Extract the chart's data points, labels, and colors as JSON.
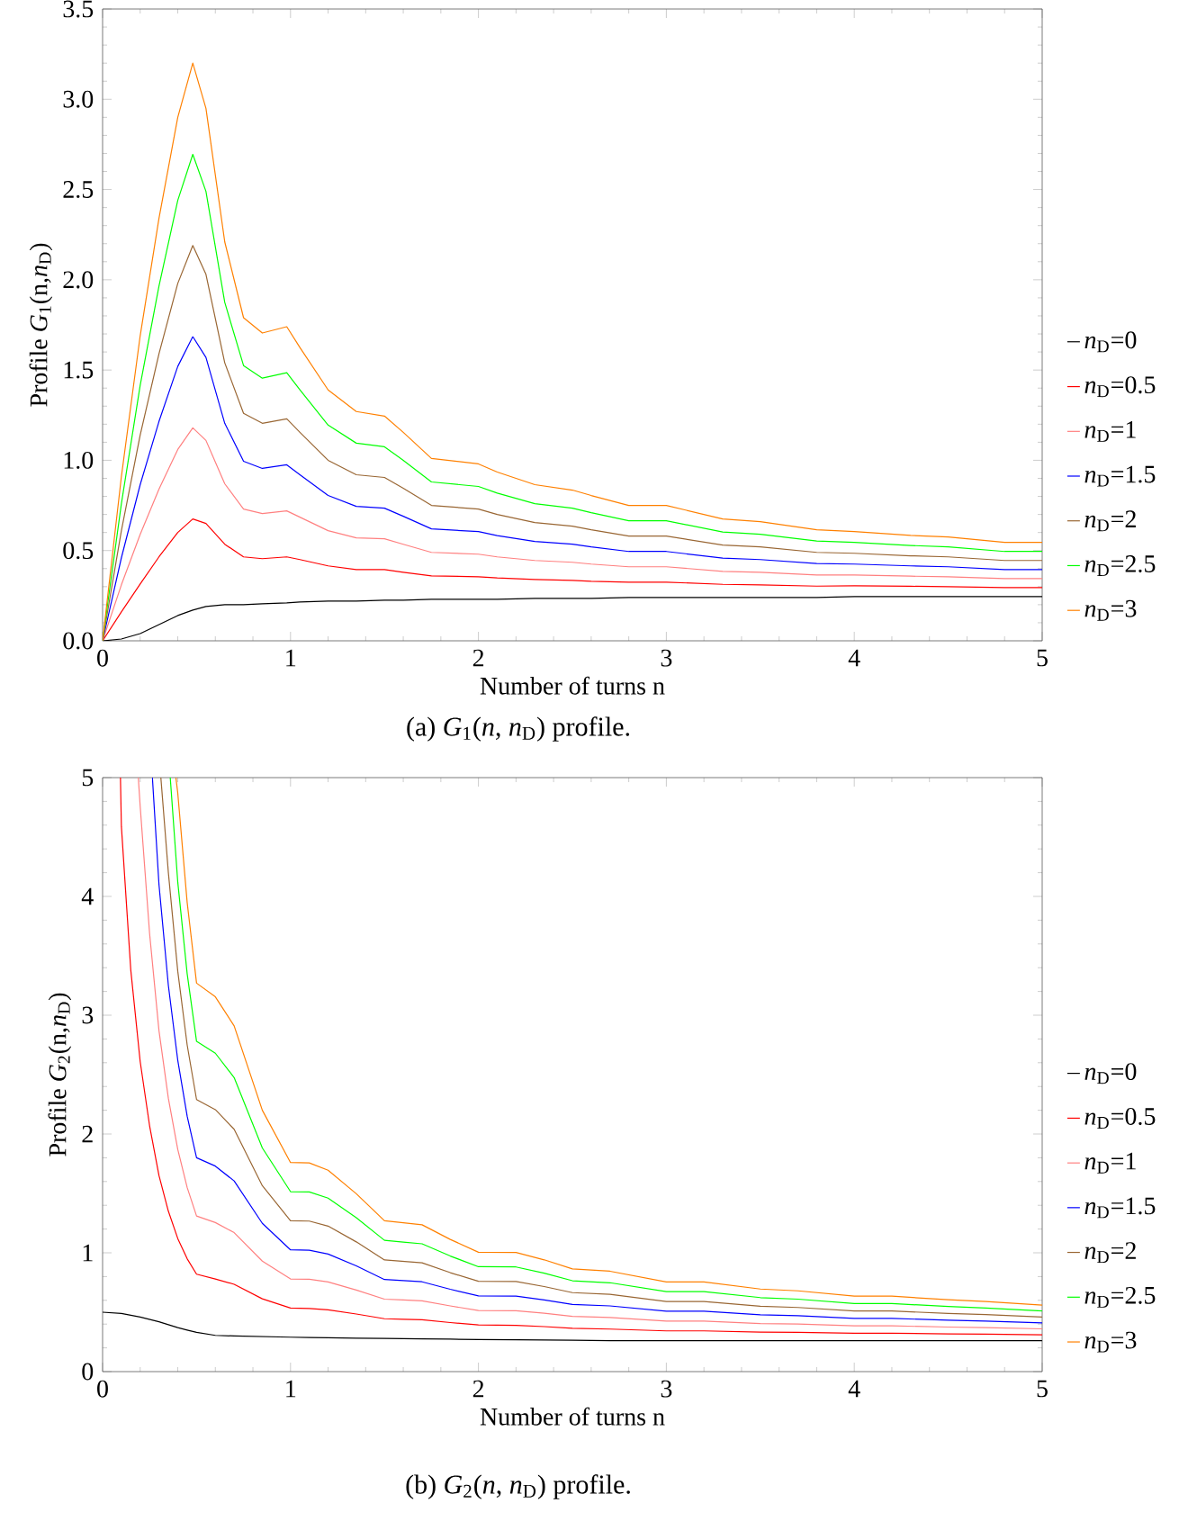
{
  "chart_data": [
    {
      "type": "line",
      "xlabel": "Number of turns n",
      "ylabel": "Profile *G*$_{1}$(n,*n*$_{D}$)",
      "annotations": [
        "(a) *G*$_{1}$(*n*, *n*$_{D}$) profile."
      ],
      "xlim": [
        0,
        5
      ],
      "ylim": [
        0,
        3.5
      ],
      "xticks": [
        0,
        1,
        2,
        3,
        4,
        5
      ],
      "yticks": [
        {
          "value": 0,
          "label": "0.0"
        },
        {
          "value": 0.5,
          "label": "0.5"
        },
        {
          "value": 1,
          "label": "1.0"
        },
        {
          "value": 1.5,
          "label": "1.5"
        },
        {
          "value": 2,
          "label": "2.0"
        },
        {
          "value": 2.5,
          "label": "2.5"
        },
        {
          "value": 3,
          "label": "3.0"
        },
        {
          "value": 3.5,
          "label": "3.5"
        }
      ],
      "legend": "right",
      "line_style": "solid",
      "x": [
        0,
        0.1,
        0.2,
        0.3,
        0.4,
        0.48,
        0.55,
        0.65,
        0.75,
        0.85,
        0.98,
        1.05,
        1.2,
        1.35,
        1.5,
        1.6,
        1.75,
        2.0,
        2.1,
        2.3,
        2.5,
        2.6,
        2.8,
        3.0,
        3.3,
        3.5,
        3.8,
        4.0,
        4.3,
        4.5,
        4.8,
        5.0
      ],
      "series": [
        {
          "name": "*n*$_{D}$=0",
          "color": "#000000",
          "values": [
            0,
            0.01,
            0.04,
            0.09,
            0.14,
            0.17,
            0.19,
            0.2,
            0.2,
            0.205,
            0.21,
            0.215,
            0.22,
            0.22,
            0.225,
            0.225,
            0.23,
            0.23,
            0.23,
            0.235,
            0.235,
            0.235,
            0.24,
            0.24,
            0.24,
            0.24,
            0.24,
            0.245,
            0.245,
            0.245,
            0.245,
            0.245
          ]
        },
        {
          "name": "*n*$_{D}$=0.5",
          "color": "#ff0000",
          "values": [
            0,
            0.16,
            0.315,
            0.465,
            0.6,
            0.675,
            0.65,
            0.535,
            0.465,
            0.455,
            0.465,
            0.45,
            0.415,
            0.395,
            0.395,
            0.38,
            0.36,
            0.355,
            0.348,
            0.34,
            0.335,
            0.33,
            0.325,
            0.325,
            0.313,
            0.31,
            0.303,
            0.305,
            0.302,
            0.3,
            0.295,
            0.295
          ]
        },
        {
          "name": "*n*$_{D}$=1",
          "color": "#ff8080",
          "values": [
            0,
            0.31,
            0.59,
            0.84,
            1.06,
            1.18,
            1.11,
            0.87,
            0.73,
            0.705,
            0.72,
            0.685,
            0.61,
            0.57,
            0.565,
            0.535,
            0.49,
            0.48,
            0.465,
            0.445,
            0.435,
            0.425,
            0.41,
            0.41,
            0.385,
            0.38,
            0.365,
            0.365,
            0.358,
            0.355,
            0.345,
            0.345
          ]
        },
        {
          "name": "*n*$_{D}$=1.5",
          "color": "#0000ff",
          "values": [
            0,
            0.46,
            0.865,
            1.215,
            1.52,
            1.685,
            1.57,
            1.205,
            0.995,
            0.955,
            0.975,
            0.92,
            0.805,
            0.745,
            0.735,
            0.69,
            0.62,
            0.605,
            0.583,
            0.55,
            0.535,
            0.52,
            0.495,
            0.495,
            0.458,
            0.45,
            0.428,
            0.425,
            0.415,
            0.41,
            0.395,
            0.395
          ]
        },
        {
          "name": "*n*$_{D}$=2",
          "color": "#996633",
          "values": [
            0,
            0.61,
            1.14,
            1.59,
            1.98,
            2.19,
            2.03,
            1.54,
            1.26,
            1.205,
            1.23,
            1.155,
            1.0,
            0.92,
            0.905,
            0.845,
            0.75,
            0.73,
            0.7,
            0.655,
            0.635,
            0.615,
            0.58,
            0.58,
            0.53,
            0.52,
            0.49,
            0.485,
            0.471,
            0.465,
            0.445,
            0.445
          ]
        },
        {
          "name": "*n*$_{D}$=2.5",
          "color": "#00ff00",
          "values": [
            0,
            0.76,
            1.415,
            1.965,
            2.44,
            2.695,
            2.49,
            1.875,
            1.525,
            1.455,
            1.485,
            1.39,
            1.195,
            1.095,
            1.075,
            1.0,
            0.88,
            0.855,
            0.818,
            0.76,
            0.735,
            0.71,
            0.665,
            0.665,
            0.603,
            0.59,
            0.553,
            0.545,
            0.528,
            0.52,
            0.495,
            0.495
          ]
        },
        {
          "name": "*n*$_{D}$=3",
          "color": "#ff8000",
          "values": [
            0,
            0.91,
            1.69,
            2.34,
            2.9,
            3.2,
            2.95,
            2.21,
            1.79,
            1.705,
            1.74,
            1.625,
            1.39,
            1.27,
            1.245,
            1.155,
            1.01,
            0.98,
            0.935,
            0.865,
            0.835,
            0.805,
            0.75,
            0.75,
            0.675,
            0.66,
            0.615,
            0.605,
            0.584,
            0.575,
            0.545,
            0.545
          ]
        }
      ]
    },
    {
      "type": "line",
      "xlabel": "Number of turns n",
      "ylabel": "Profile *G*$_{2}$(n,*n*$_{D}$)",
      "annotations": [
        "(b) *G*$_{2}$(*n*, *n*$_{D}$) profile."
      ],
      "xlim": [
        0,
        5
      ],
      "ylim": [
        0,
        5
      ],
      "xticks": [
        0,
        1,
        2,
        3,
        4,
        5
      ],
      "yticks": [
        0,
        1,
        2,
        3,
        4,
        5
      ],
      "legend": "right",
      "line_style": "solid",
      "series": [
        {
          "name": "*n*$_{D}$=0",
          "color": "#000000",
          "x": [
            0,
            0.1,
            0.2,
            0.3,
            0.4,
            0.45,
            0.5,
            0.6,
            0.7,
            0.85,
            1.0,
            1.1,
            1.2,
            1.35,
            1.5,
            1.6,
            1.7,
            1.85,
            2.0,
            2.2,
            2.35,
            2.5,
            2.7,
            3.0,
            3.2,
            3.5,
            3.7,
            4.0,
            4.2,
            4.5,
            4.7,
            5.0
          ],
          "values": [
            0.5,
            0.49,
            0.46,
            0.42,
            0.37,
            0.35,
            0.33,
            0.305,
            0.3,
            0.295,
            0.29,
            0.287,
            0.285,
            0.282,
            0.28,
            0.278,
            0.276,
            0.273,
            0.27,
            0.268,
            0.266,
            0.265,
            0.26,
            0.26,
            0.26,
            0.26,
            0.26,
            0.26,
            0.26,
            0.26,
            0.26,
            0.26
          ]
        },
        {
          "name": "*n*$_{D}$=0.5",
          "color": "#ff0000",
          "x": [
            0.095,
            0.1,
            0.15,
            0.2,
            0.25,
            0.3,
            0.35,
            0.4,
            0.45,
            0.5,
            0.6,
            0.7,
            0.85,
            1.0,
            1.1,
            1.2,
            1.35,
            1.5,
            1.6,
            1.7,
            1.85,
            2.0,
            2.2,
            2.35,
            2.5,
            2.7,
            3.0,
            3.2,
            3.5,
            3.7,
            4.0,
            4.2,
            4.5,
            4.7,
            5.0
          ],
          "values": [
            5,
            4.59,
            3.38,
            2.61,
            2.07,
            1.65,
            1.35,
            1.12,
            0.95,
            0.82,
            0.78,
            0.735,
            0.613,
            0.535,
            0.532,
            0.52,
            0.485,
            0.445,
            0.44,
            0.436,
            0.413,
            0.393,
            0.39,
            0.379,
            0.365,
            0.358,
            0.343,
            0.343,
            0.333,
            0.33,
            0.323,
            0.323,
            0.318,
            0.315,
            0.31
          ]
        },
        {
          "name": "*n*$_{D}$=1",
          "color": "#ff8080",
          "x": [
            0.19,
            0.2,
            0.25,
            0.3,
            0.35,
            0.4,
            0.45,
            0.5,
            0.6,
            0.7,
            0.85,
            1.0,
            1.1,
            1.2,
            1.35,
            1.5,
            1.6,
            1.7,
            1.85,
            2.0,
            2.2,
            2.35,
            2.5,
            2.7,
            3.0,
            3.2,
            3.5,
            3.7,
            4.0,
            4.2,
            4.5,
            4.7,
            5.0
          ],
          "values": [
            5,
            4.76,
            3.69,
            2.87,
            2.3,
            1.87,
            1.55,
            1.31,
            1.255,
            1.17,
            0.93,
            0.78,
            0.777,
            0.755,
            0.687,
            0.61,
            0.603,
            0.596,
            0.553,
            0.515,
            0.513,
            0.491,
            0.465,
            0.455,
            0.425,
            0.425,
            0.405,
            0.4,
            0.385,
            0.385,
            0.375,
            0.37,
            0.36
          ]
        },
        {
          "name": "*n*$_{D}$=1.5",
          "color": "#0000ff",
          "x": [
            0.265,
            0.3,
            0.35,
            0.4,
            0.45,
            0.5,
            0.6,
            0.7,
            0.85,
            1.0,
            1.1,
            1.2,
            1.35,
            1.5,
            1.6,
            1.7,
            1.85,
            2.0,
            2.2,
            2.35,
            2.5,
            2.7,
            3.0,
            3.2,
            3.5,
            3.7,
            4.0,
            4.2,
            4.5,
            4.7,
            5.0
          ],
          "values": [
            5,
            4.1,
            3.25,
            2.62,
            2.15,
            1.8,
            1.73,
            1.605,
            1.248,
            1.025,
            1.022,
            0.99,
            0.89,
            0.775,
            0.766,
            0.756,
            0.693,
            0.638,
            0.636,
            0.604,
            0.565,
            0.553,
            0.508,
            0.508,
            0.478,
            0.47,
            0.448,
            0.448,
            0.433,
            0.425,
            0.41
          ]
        },
        {
          "name": "*n*$_{D}$=2",
          "color": "#996633",
          "x": [
            0.31,
            0.35,
            0.4,
            0.45,
            0.5,
            0.6,
            0.7,
            0.85,
            1.0,
            1.1,
            1.2,
            1.35,
            1.5,
            1.6,
            1.7,
            1.85,
            2.0,
            2.2,
            2.35,
            2.5,
            2.7,
            3.0,
            3.2,
            3.5,
            3.7,
            4.0,
            4.2,
            4.5,
            4.7,
            5.0
          ],
          "values": [
            5,
            4.2,
            3.37,
            2.75,
            2.29,
            2.205,
            2.04,
            1.565,
            1.27,
            1.267,
            1.225,
            1.092,
            0.94,
            0.928,
            0.916,
            0.833,
            0.76,
            0.758,
            0.716,
            0.665,
            0.65,
            0.59,
            0.59,
            0.55,
            0.54,
            0.51,
            0.51,
            0.49,
            0.48,
            0.46
          ]
        },
        {
          "name": "*n*$_{D}$=2.5",
          "color": "#00ff00",
          "x": [
            0.36,
            0.4,
            0.45,
            0.5,
            0.6,
            0.7,
            0.85,
            1.0,
            1.1,
            1.2,
            1.35,
            1.5,
            1.6,
            1.7,
            1.85,
            2.0,
            2.2,
            2.35,
            2.5,
            2.7,
            3.0,
            3.2,
            3.5,
            3.7,
            4.0,
            4.2,
            4.5,
            4.7,
            5.0
          ],
          "values": [
            5,
            4.12,
            3.35,
            2.78,
            2.68,
            2.475,
            1.883,
            1.515,
            1.512,
            1.46,
            1.295,
            1.105,
            1.09,
            1.076,
            0.973,
            0.883,
            0.881,
            0.829,
            0.765,
            0.748,
            0.673,
            0.673,
            0.623,
            0.61,
            0.573,
            0.573,
            0.548,
            0.535,
            0.51
          ]
        },
        {
          "name": "*n*$_{D}$=3",
          "color": "#ff8000",
          "x": [
            0.39,
            0.4,
            0.45,
            0.5,
            0.6,
            0.7,
            0.85,
            1.0,
            1.1,
            1.2,
            1.35,
            1.5,
            1.6,
            1.7,
            1.85,
            2.0,
            2.2,
            2.35,
            2.5,
            2.7,
            3.0,
            3.2,
            3.5,
            3.7,
            4.0,
            4.2,
            4.5,
            4.7,
            5.0
          ],
          "values": [
            5,
            4.87,
            3.95,
            3.27,
            3.155,
            2.91,
            2.2,
            1.76,
            1.757,
            1.695,
            1.497,
            1.27,
            1.253,
            1.236,
            1.113,
            1.005,
            1.003,
            0.941,
            0.865,
            0.845,
            0.755,
            0.755,
            0.695,
            0.68,
            0.635,
            0.635,
            0.605,
            0.59,
            0.56
          ]
        }
      ]
    }
  ]
}
